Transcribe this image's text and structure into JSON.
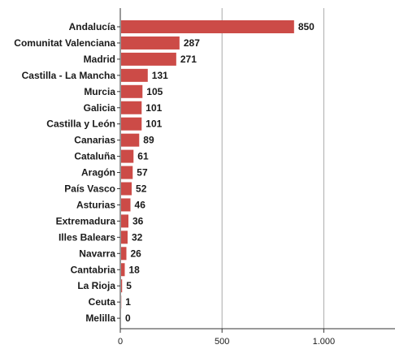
{
  "chart_data": {
    "type": "bar",
    "orientation": "horizontal",
    "categories": [
      "Andalucía",
      "Comunitat Valenciana",
      "Madrid",
      "Castilla - La Mancha",
      "Murcia",
      "Galicia",
      "Castilla y León",
      "Canarias",
      "Cataluña",
      "Aragón",
      "País Vasco",
      "Asturias",
      "Extremadura",
      "Illes Balears",
      "Navarra",
      "Cantabria",
      "La Rioja",
      "Ceuta",
      "Melilla"
    ],
    "values": [
      850,
      287,
      271,
      131,
      105,
      101,
      101,
      89,
      61,
      57,
      52,
      46,
      36,
      32,
      26,
      18,
      5,
      1,
      0
    ],
    "value_labels": [
      "850",
      "287",
      "271",
      "131",
      "105",
      "101",
      "101",
      "89",
      "61",
      "57",
      "52",
      "46",
      "36",
      "32",
      "26",
      "18",
      "5",
      "1",
      "0"
    ],
    "xlim": [
      0,
      1350
    ],
    "x_ticks": [
      0,
      500,
      1000
    ],
    "x_tick_labels": [
      "0",
      "500",
      "1.000"
    ],
    "grid": true,
    "legend": "none",
    "bar_color": "#cc4b47",
    "grid_color": "#a8a8a8",
    "axis_color": "#333333"
  }
}
